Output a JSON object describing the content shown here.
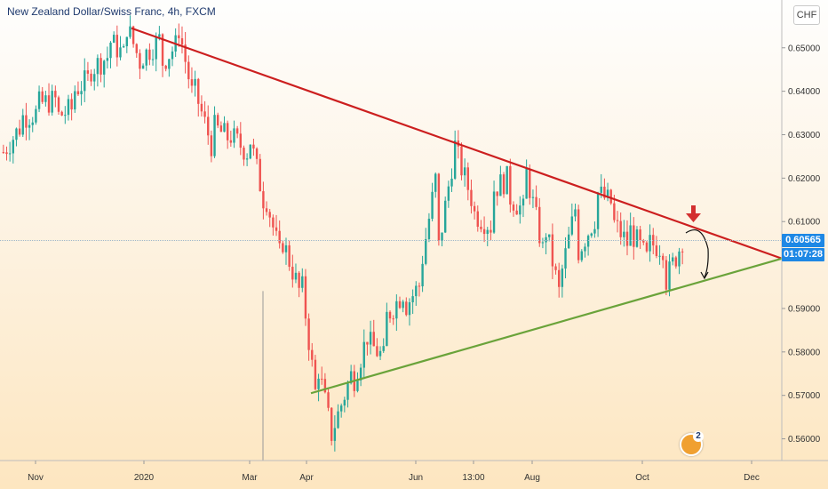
{
  "chart_data": {
    "type": "candlestick",
    "title": "New Zealand Dollar/Swiss Franc, 4h, FXCM",
    "currency": "CHF",
    "timeframe": "4h",
    "y_axis": {
      "min": 0.555,
      "max": 0.661,
      "ticks": [
        "0.65000",
        "0.64000",
        "0.63000",
        "0.62000",
        "0.61000",
        "0.59000",
        "0.58000",
        "0.57000",
        "0.56000"
      ],
      "tick_values": [
        0.65,
        0.64,
        0.63,
        0.62,
        0.61,
        0.59,
        0.58,
        0.57,
        0.56
      ]
    },
    "x_axis": {
      "labels": [
        "Nov",
        "2020",
        "Mar",
        "Apr",
        "Jun",
        "13:00",
        "Aug",
        "Oct",
        "Dec"
      ]
    },
    "current_price": "0.60565",
    "countdown": "01:07:28",
    "price_path": [
      [
        0.626,
        0.624
      ],
      [
        0.634,
        0.632
      ],
      [
        0.637,
        0.635
      ],
      [
        0.634,
        0.638
      ],
      [
        0.64,
        0.636
      ],
      [
        0.645,
        0.643
      ],
      [
        0.652,
        0.648
      ],
      [
        0.656,
        0.648
      ],
      [
        0.648,
        0.645
      ],
      [
        0.646,
        0.652
      ],
      [
        0.656,
        0.651
      ],
      [
        0.64,
        0.636
      ],
      [
        0.632,
        0.627
      ],
      [
        0.63,
        0.629
      ],
      [
        0.632,
        0.626
      ],
      [
        0.617,
        0.614
      ],
      [
        0.606,
        0.6
      ],
      [
        0.6,
        0.594
      ],
      [
        0.578,
        0.568
      ],
      [
        0.563,
        0.558
      ],
      [
        0.572,
        0.575
      ],
      [
        0.582,
        0.585
      ],
      [
        0.588,
        0.578
      ],
      [
        0.59,
        0.594
      ],
      [
        0.6,
        0.596
      ],
      [
        0.604,
        0.624
      ],
      [
        0.626,
        0.629
      ],
      [
        0.612,
        0.614
      ],
      [
        0.617,
        0.609
      ],
      [
        0.616,
        0.62
      ],
      [
        0.622,
        0.612
      ],
      [
        0.611,
        0.603
      ],
      [
        0.597,
        0.592
      ],
      [
        0.603,
        0.616
      ],
      [
        0.617,
        0.611
      ],
      [
        0.61,
        0.614
      ],
      [
        0.608,
        0.604
      ],
      [
        0.605,
        0.601
      ],
      [
        0.596,
        0.604
      ],
      [
        0.606,
        0.6055
      ]
    ],
    "trendlines": [
      {
        "name": "",
        "color": "#cc1f1f",
        "start_price": 0.6545,
        "end_price": 0.6015
      },
      {
        "name": "",
        "color": "#6aa33a",
        "start_price": 0.5705,
        "end_price": 0.6015
      }
    ],
    "annotation": {
      "type": "down-arrow",
      "color": "#d32f2f"
    },
    "projection_arrow": {
      "color": "#111111"
    },
    "event_badge": {
      "count": "2"
    },
    "colors": {
      "up": "#26a69a",
      "down": "#ef5350",
      "accent": "#1e88e5"
    }
  }
}
